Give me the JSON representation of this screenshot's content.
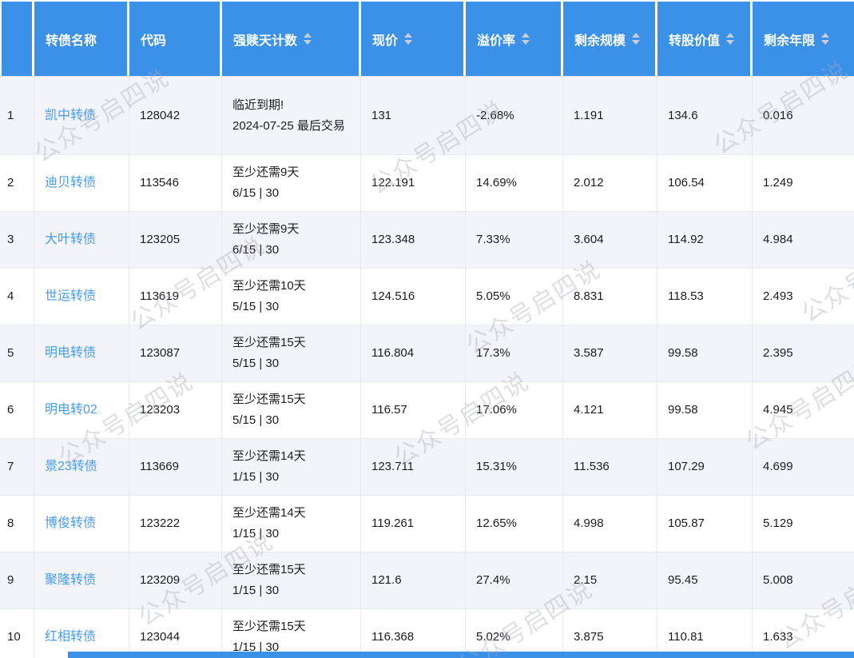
{
  "watermark": {
    "text": "公众号启四说"
  },
  "colors": {
    "header_bg": "#3B90E8",
    "link": "#469CF4",
    "stripe": "#F3F4F9",
    "alert": "#F04134"
  },
  "table": {
    "columns": [
      {
        "label": "",
        "sortable": false
      },
      {
        "label": "转债名称",
        "sortable": false
      },
      {
        "label": "代码",
        "sortable": false
      },
      {
        "label": "强赎天计数",
        "sortable": true
      },
      {
        "label": "现价",
        "sortable": true
      },
      {
        "label": "溢价率",
        "sortable": true
      },
      {
        "label": "剩余规模",
        "sortable": true
      },
      {
        "label": "转股价值",
        "sortable": true
      },
      {
        "label": "剩余年限",
        "sortable": true
      }
    ],
    "rows": [
      {
        "index": "1",
        "name": "凯中转债",
        "code": "128042",
        "redeem_line1": "临近到期",
        "redeem_alert": "!",
        "redeem_line2": "2024-07-25 最后交易",
        "price": "131",
        "premium_rate": "-2.68%",
        "remaining_size": "1.191",
        "conversion_value": "134.6",
        "remaining_years": "0.016"
      },
      {
        "index": "2",
        "name": "迪贝转债",
        "code": "113546",
        "redeem_line1": "至少还需9天",
        "redeem_alert": "",
        "redeem_line2": "6/15 | 30",
        "price": "122.191",
        "premium_rate": "14.69%",
        "remaining_size": "2.012",
        "conversion_value": "106.54",
        "remaining_years": "1.249"
      },
      {
        "index": "3",
        "name": "大叶转债",
        "code": "123205",
        "redeem_line1": "至少还需9天",
        "redeem_alert": "",
        "redeem_line2": "6/15 | 30",
        "price": "123.348",
        "premium_rate": "7.33%",
        "remaining_size": "3.604",
        "conversion_value": "114.92",
        "remaining_years": "4.984"
      },
      {
        "index": "4",
        "name": "世运转债",
        "code": "113619",
        "redeem_line1": "至少还需10天",
        "redeem_alert": "",
        "redeem_line2": "5/15 | 30",
        "price": "124.516",
        "premium_rate": "5.05%",
        "remaining_size": "8.831",
        "conversion_value": "118.53",
        "remaining_years": "2.493"
      },
      {
        "index": "5",
        "name": "明电转债",
        "code": "123087",
        "redeem_line1": "至少还需15天",
        "redeem_alert": "",
        "redeem_line2": "5/15 | 30",
        "price": "116.804",
        "premium_rate": "17.3%",
        "remaining_size": "3.587",
        "conversion_value": "99.58",
        "remaining_years": "2.395"
      },
      {
        "index": "6",
        "name": "明电转02",
        "code": "123203",
        "redeem_line1": "至少还需15天",
        "redeem_alert": "",
        "redeem_line2": "5/15 | 30",
        "price": "116.57",
        "premium_rate": "17.06%",
        "remaining_size": "4.121",
        "conversion_value": "99.58",
        "remaining_years": "4.945"
      },
      {
        "index": "7",
        "name": "景23转债",
        "code": "113669",
        "redeem_line1": "至少还需14天",
        "redeem_alert": "",
        "redeem_line2": "1/15 | 30",
        "price": "123.711",
        "premium_rate": "15.31%",
        "remaining_size": "11.536",
        "conversion_value": "107.29",
        "remaining_years": "4.699"
      },
      {
        "index": "8",
        "name": "博俊转债",
        "code": "123222",
        "redeem_line1": "至少还需14天",
        "redeem_alert": "",
        "redeem_line2": "1/15 | 30",
        "price": "119.261",
        "premium_rate": "12.65%",
        "remaining_size": "4.998",
        "conversion_value": "105.87",
        "remaining_years": "5.129"
      },
      {
        "index": "9",
        "name": "聚隆转债",
        "code": "123209",
        "redeem_line1": "至少还需15天",
        "redeem_alert": "",
        "redeem_line2": "1/15 | 30",
        "price": "121.6",
        "premium_rate": "27.4%",
        "remaining_size": "2.15",
        "conversion_value": "95.45",
        "remaining_years": "5.008"
      },
      {
        "index": "10",
        "name": "红相转债",
        "code": "123044",
        "redeem_line1": "至少还需15天",
        "redeem_alert": "",
        "redeem_line2": "1/15 | 30",
        "price": "116.368",
        "premium_rate": "5.02%",
        "remaining_size": "3.875",
        "conversion_value": "110.81",
        "remaining_years": "1.633"
      }
    ]
  }
}
